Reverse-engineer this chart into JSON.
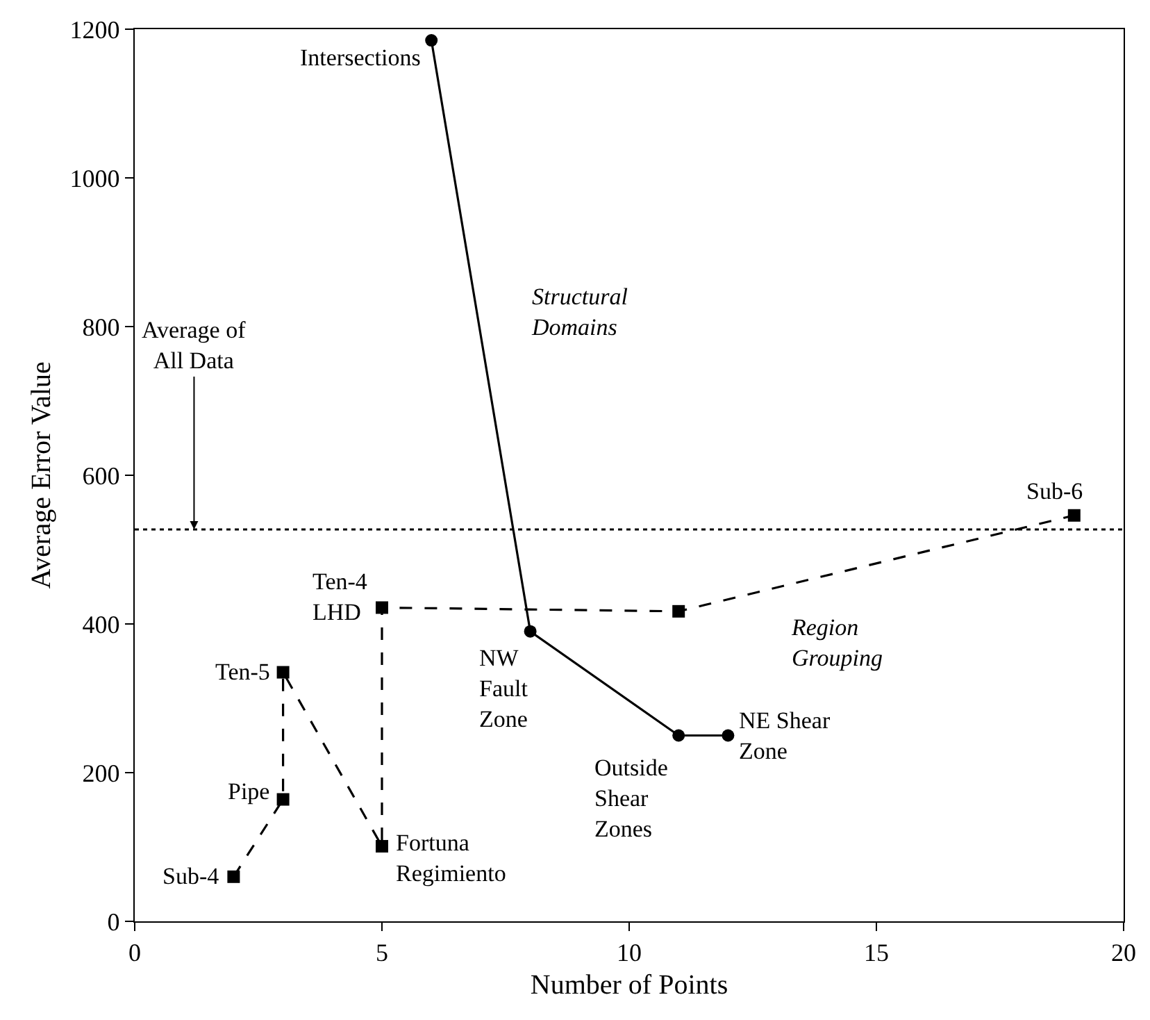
{
  "chart_data": {
    "type": "line",
    "xlabel": "Number of Points",
    "ylabel": "Average Error Value",
    "series": [
      {
        "x": [
          6,
          8,
          11,
          12
        ],
        "values": [
          1185,
          390,
          250,
          250
        ],
        "color": "#000000",
        "marker": "circle",
        "line_style": "solid"
      },
      {
        "x": [
          2,
          3,
          3,
          5,
          5,
          11,
          19
        ],
        "values": [
          60,
          164,
          335,
          101,
          422,
          417,
          546
        ],
        "color": "#000000",
        "marker": "square",
        "line_style": "dashed"
      }
    ],
    "xlim": [
      0,
      20
    ],
    "xticks": [
      0,
      5,
      10,
      15,
      20
    ],
    "ylim": [
      0,
      1200
    ],
    "yticks": [
      0,
      200,
      400,
      600,
      800,
      1000,
      1200
    ],
    "ref_lines": [
      {
        "axis": "y",
        "value": 527,
        "label": "Average of\nAll Data",
        "color": "#000000",
        "line_style": "dotted"
      }
    ],
    "annotations": [
      {
        "text": "Intersections",
        "x": 6,
        "y": 1185
      },
      {
        "text": "NW\nFault\nZone",
        "x": 8,
        "y": 390
      },
      {
        "text": "Outside\nShear\nZones",
        "x": 11,
        "y": 250
      },
      {
        "text": "NE Shear\nZone",
        "x": 12,
        "y": 250
      },
      {
        "text": "Sub-4",
        "x": 2,
        "y": 60
      },
      {
        "text": "Pipe",
        "x": 3,
        "y": 164
      },
      {
        "text": "Ten-5",
        "x": 3,
        "y": 335
      },
      {
        "text": "Fortuna\nRegimiento",
        "x": 5,
        "y": 101
      },
      {
        "text": "Ten-4\nLHD",
        "x": 5,
        "y": 422
      },
      {
        "text": "Sub-6",
        "x": 19,
        "y": 546
      },
      "Structural\nDomains",
      "Region\nGrouping"
    ]
  }
}
